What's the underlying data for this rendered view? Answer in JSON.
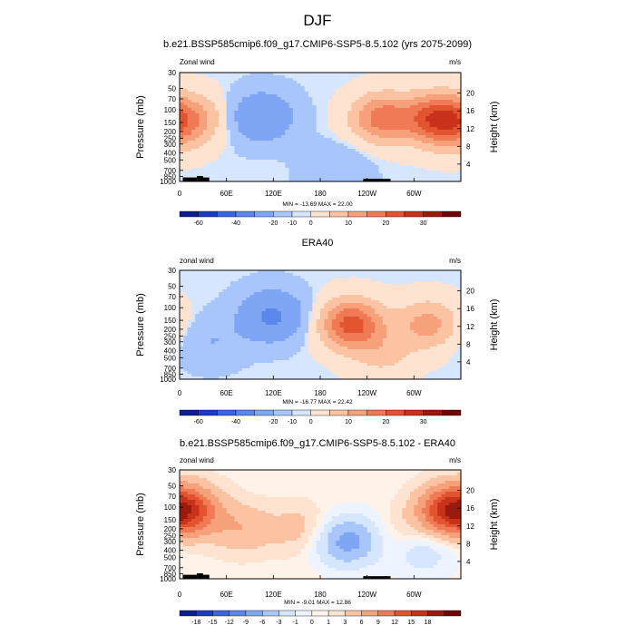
{
  "figure": {
    "title": "DJF",
    "colors": {
      "levels_panel": [
        "#0b1f8f",
        "#1a3bc2",
        "#3a66e0",
        "#5b87ec",
        "#7ea6f4",
        "#a8c6fb",
        "#d6e6fe",
        "#fde3d0",
        "#fcc3a3",
        "#f7a17b",
        "#f07a55",
        "#e2532f",
        "#c9321a",
        "#9a1a0d",
        "#6d0606"
      ],
      "levels_diff": [
        "#0b1f8f",
        "#1a3bc2",
        "#3a66e0",
        "#5b87ec",
        "#7ea6f4",
        "#a8c6fb",
        "#d6e6fe",
        "#eef4ff",
        "#fff2e8",
        "#fde3d0",
        "#fcc3a3",
        "#f7a17b",
        "#f07a55",
        "#e2532f",
        "#c9321a",
        "#9a1a0d",
        "#6d0606"
      ],
      "topography": "#000000"
    }
  },
  "chart_data": [
    {
      "type": "heatmap",
      "title": "b.e21.BSSP585cmip6.f09_g17.CMIP6-SSP5-8.5.102 (yrs 2075-2099)",
      "left_label": "Zonal wind",
      "right_label": "m/s",
      "xlabel": "",
      "ylabel": "Pressure (mb)",
      "y2label": "Height (km)",
      "x_ticks": [
        "0",
        "60E",
        "120E",
        "180",
        "120W",
        "60W"
      ],
      "y_ticks": [
        "30",
        "50",
        "70",
        "100",
        "150",
        "200",
        "250",
        "300",
        "400",
        "500",
        "700",
        "850",
        "1000"
      ],
      "y2_ticks": [
        "20",
        "16",
        "12",
        "8",
        "4"
      ],
      "stats": "MIN = -13.69  MAX = 22.00",
      "colorbar_labels": [
        "-60",
        "-40",
        "-20",
        "-10",
        "0",
        "10",
        "20",
        "30"
      ],
      "features": [
        {
          "lon": 330,
          "p": 130,
          "value": 22
        },
        {
          "lon": 260,
          "p": 130,
          "value": 18
        },
        {
          "lon": 20,
          "p": 130,
          "value": 10
        },
        {
          "lon": 105,
          "p": 125,
          "value": -13.7
        },
        {
          "lon": 200,
          "p": 700,
          "value": -5
        },
        {
          "lon": 350,
          "p": 200,
          "value": 6
        }
      ]
    },
    {
      "type": "heatmap",
      "title": "ERA40",
      "left_label": "zonal wind",
      "right_label": "m/s",
      "xlabel": "",
      "ylabel": "Pressure (mb)",
      "y2label": "Height (km)",
      "x_ticks": [
        "0",
        "60E",
        "120E",
        "180",
        "120W",
        "60W"
      ],
      "y_ticks": [
        "30",
        "50",
        "70",
        "100",
        "150",
        "200",
        "250",
        "300",
        "400",
        "500",
        "700",
        "850",
        "1000"
      ],
      "y2_ticks": [
        "20",
        "16",
        "12",
        "8",
        "4"
      ],
      "stats": "MIN = -16.77  MAX = 22.42",
      "colorbar_labels": [
        "-60",
        "-40",
        "-20",
        "-10",
        "0",
        "10",
        "20",
        "30"
      ],
      "features": [
        {
          "lon": 220,
          "p": 170,
          "value": 22.4
        },
        {
          "lon": 318,
          "p": 170,
          "value": 12
        },
        {
          "lon": 118,
          "p": 130,
          "value": -16.8
        },
        {
          "lon": 40,
          "p": 300,
          "value": -5
        },
        {
          "lon": 260,
          "p": 450,
          "value": 6
        }
      ]
    },
    {
      "type": "heatmap",
      "title": "b.e21.BSSP585cmip6.f09_g17.CMIP6-SSP5-8.5.102 - ERA40",
      "left_label": "zonal wind",
      "right_label": "m/s",
      "xlabel": "",
      "ylabel": "Pressure (mb)",
      "y2label": "Height (km)",
      "x_ticks": [
        "0",
        "60E",
        "120E",
        "180",
        "120W",
        "60W"
      ],
      "y_ticks": [
        "30",
        "50",
        "70",
        "100",
        "150",
        "200",
        "250",
        "300",
        "400",
        "500",
        "700",
        "850",
        "1000"
      ],
      "y2_ticks": [
        "20",
        "16",
        "12",
        "8",
        "4"
      ],
      "stats": "MIN = -9.01  MAX = 12.86",
      "colorbar_labels": [
        "-18",
        "-15",
        "-12",
        "-9",
        "-6",
        "-3",
        "-1",
        "0",
        "1",
        "3",
        "6",
        "9",
        "12",
        "15",
        "18"
      ],
      "features": [
        {
          "lon": 345,
          "p": 110,
          "value": 12.9
        },
        {
          "lon": 15,
          "p": 110,
          "value": 9
        },
        {
          "lon": 80,
          "p": 200,
          "value": 4
        },
        {
          "lon": 155,
          "p": 200,
          "value": 3
        },
        {
          "lon": 215,
          "p": 300,
          "value": -9
        },
        {
          "lon": 290,
          "p": 250,
          "value": 2
        },
        {
          "lon": 310,
          "p": 400,
          "value": -4
        }
      ]
    }
  ]
}
